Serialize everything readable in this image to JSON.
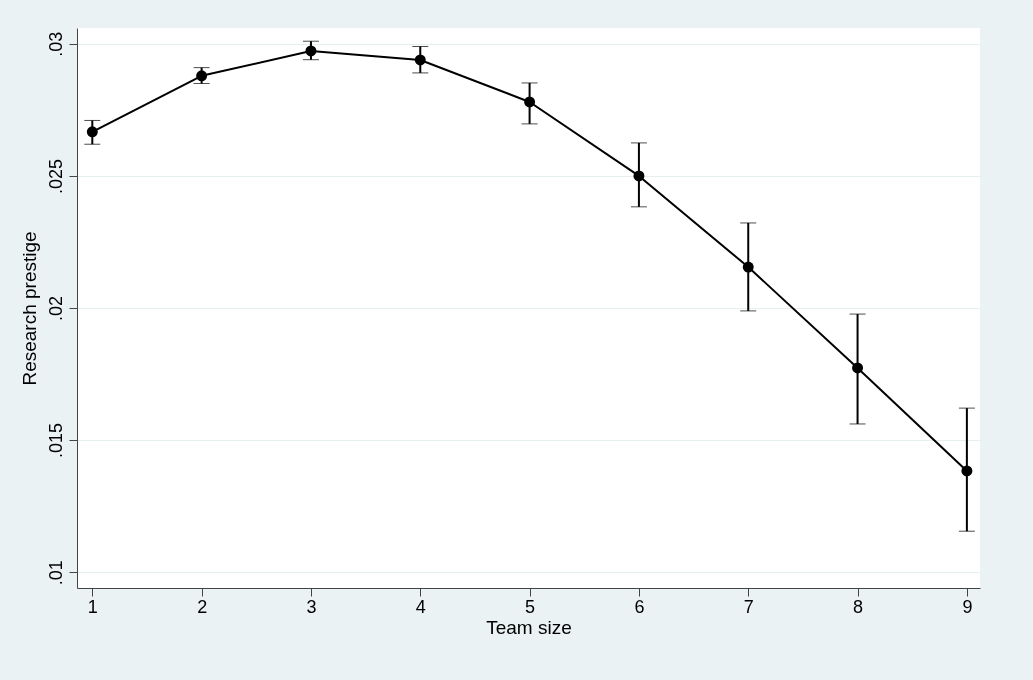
{
  "chart_data": {
    "type": "line",
    "xlabel": "Team size",
    "ylabel": "Research prestige",
    "x": [
      1,
      2,
      3,
      4,
      5,
      6,
      7,
      8,
      9
    ],
    "series": [
      {
        "color": "#000000",
        "values": [
          0.02667,
          0.02879,
          0.02973,
          0.02939,
          0.0278,
          0.025,
          0.02155,
          0.01773,
          0.01383
        ],
        "errors": [
          [
            0.0262,
            0.0271
          ],
          [
            0.0285,
            0.0291
          ],
          [
            0.0294,
            0.0301
          ],
          [
            0.0289,
            0.0299
          ],
          [
            0.02697,
            0.02852
          ],
          [
            0.02383,
            0.02625
          ],
          [
            0.01989,
            0.02322
          ],
          [
            0.01561,
            0.01977
          ],
          [
            0.01155,
            0.01621
          ]
        ]
      }
    ],
    "xlim": [
      0.86,
      9.12
    ],
    "xticks": [
      1,
      2,
      3,
      4,
      5,
      6,
      7,
      8,
      9
    ],
    "ylim": [
      0.0094,
      0.0306
    ],
    "yticks": [
      {
        "value": 0.01,
        "label": ".01"
      },
      {
        "value": 0.015,
        "label": ".015"
      },
      {
        "value": 0.02,
        "label": ".02"
      },
      {
        "value": 0.025,
        "label": ".025"
      },
      {
        "value": 0.03,
        "label": ".03"
      }
    ],
    "grid": "y",
    "marker": "circle",
    "line_style": "solid"
  }
}
